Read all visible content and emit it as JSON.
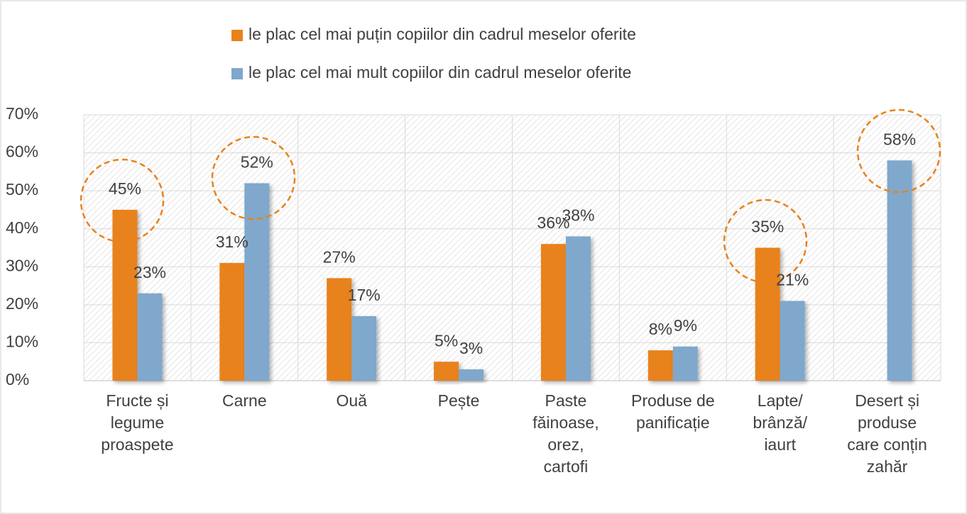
{
  "chart_data": {
    "type": "bar",
    "categories": [
      "Fructe și\nlegume\nproaspete",
      "Carne",
      "Ouă",
      "Pește",
      "Paste\nfăinoase,\norez,\ncartofi",
      "Produse de\npanificație",
      "Lapte/\nbrânză/\niaurt",
      "Desert și\nproduse\ncare conțin\nzahăr"
    ],
    "series": [
      {
        "name": "le plac cel mai puțin copiilor din cadrul meselor oferite",
        "color": "#e8821c",
        "values": [
          45,
          31,
          27,
          5,
          36,
          8,
          35,
          null
        ],
        "value_labels": [
          "45%",
          "31%",
          "27%",
          "5%",
          "36%",
          "8%",
          "35%",
          null
        ]
      },
      {
        "name": "le plac cel mai mult copiilor din cadrul meselor oferite",
        "color": "#7fa8cc",
        "values": [
          23,
          52,
          17,
          3,
          38,
          9,
          21,
          58
        ],
        "value_labels": [
          "23%",
          "52%",
          "17%",
          "3%",
          "38%",
          "9%",
          "21%",
          "58%"
        ]
      }
    ],
    "ylim": [
      0,
      70
    ],
    "yticks": [
      {
        "value": 0,
        "label": "0%"
      },
      {
        "value": 10,
        "label": "10%"
      },
      {
        "value": 20,
        "label": "20%"
      },
      {
        "value": 30,
        "label": "30%"
      },
      {
        "value": 40,
        "label": "40%"
      },
      {
        "value": 50,
        "label": "50%"
      },
      {
        "value": 60,
        "label": "60%"
      },
      {
        "value": 70,
        "label": "70%"
      }
    ],
    "grid": true
  }
}
